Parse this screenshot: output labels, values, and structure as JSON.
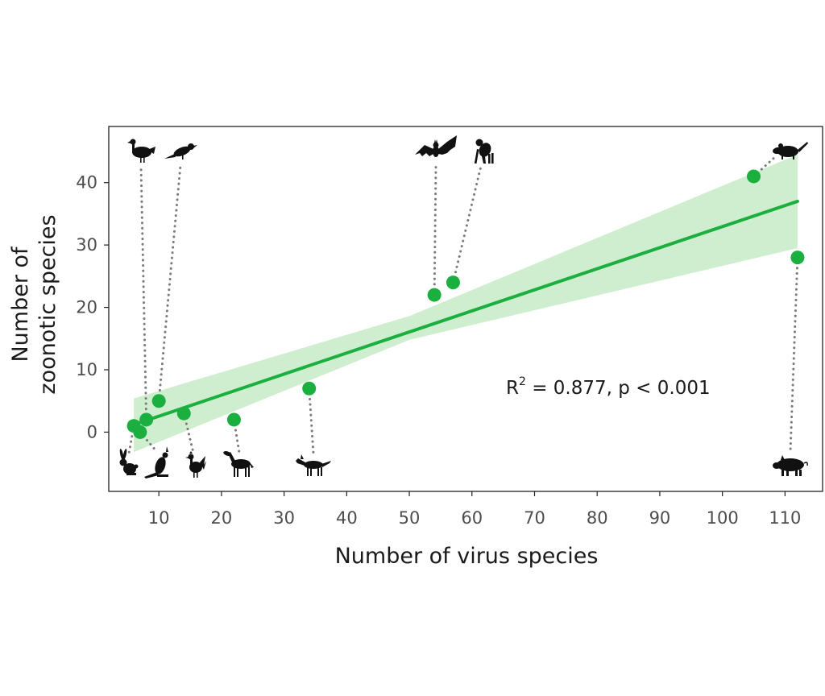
{
  "chart_data": {
    "type": "scatter",
    "xlabel": "Number of virus species",
    "ylabel_lines": [
      "Number of",
      "zoonotic species"
    ],
    "xlim": [
      2,
      116
    ],
    "ylim": [
      -9.5,
      49
    ],
    "x_ticks": [
      10,
      20,
      30,
      40,
      50,
      60,
      70,
      80,
      90,
      100,
      110
    ],
    "y_ticks": [
      0,
      10,
      20,
      30,
      40
    ],
    "grid": false,
    "points": [
      {
        "x": 6,
        "y": 1,
        "icon": "rabbit-icon"
      },
      {
        "x": 7,
        "y": 0,
        "icon": "kangaroo-icon"
      },
      {
        "x": 8,
        "y": 2,
        "icon": "turkey-icon"
      },
      {
        "x": 10,
        "y": 5,
        "icon": "bird-icon"
      },
      {
        "x": 14,
        "y": 3,
        "icon": "chicken-icon"
      },
      {
        "x": 22,
        "y": 2,
        "icon": "horse-icon"
      },
      {
        "x": 34,
        "y": 7,
        "icon": "wolf-icon"
      },
      {
        "x": 54,
        "y": 22,
        "icon": "bat-icon"
      },
      {
        "x": 57,
        "y": 24,
        "icon": "primate-icon"
      },
      {
        "x": 105,
        "y": 41,
        "icon": "rodent-icon"
      },
      {
        "x": 112,
        "y": 28,
        "icon": "pig-icon"
      }
    ],
    "regression": {
      "x_range": [
        6,
        112
      ],
      "line": [
        [
          6,
          1.2
        ],
        [
          112,
          37.0
        ]
      ],
      "ci_upper": [
        [
          6,
          5.4
        ],
        [
          50,
          18.6
        ],
        [
          112,
          44.5
        ]
      ],
      "ci_lower": [
        [
          6,
          -3.2
        ],
        [
          50,
          14.8
        ],
        [
          112,
          29.5
        ]
      ]
    },
    "annotation": {
      "prefix": "R",
      "sup": "2",
      "rest": " = 0.877,  p < 0.001"
    },
    "colors": {
      "point": "#1aaf3e",
      "line": "#1aaf3e",
      "band": "#cfeecf",
      "silhouette": "#111111",
      "leader": "#7a7a7a"
    }
  }
}
